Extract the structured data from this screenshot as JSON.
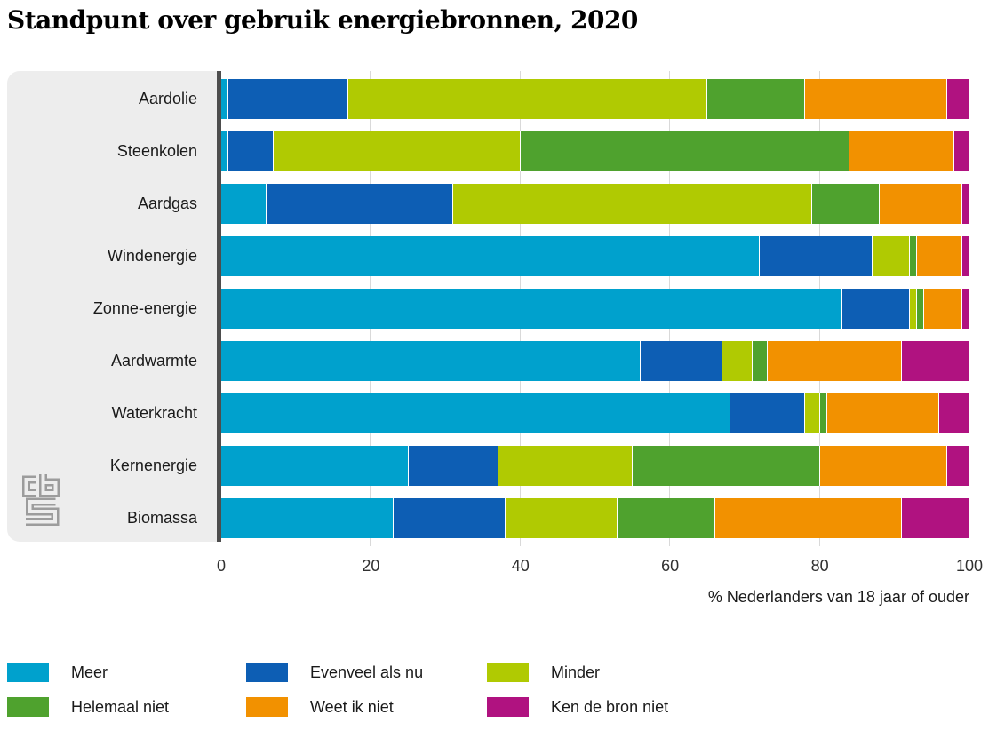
{
  "title": "Standpunt over gebruik energiebronnen, 2020",
  "logo": {
    "name": "cbs-logo"
  },
  "chart_data": {
    "type": "bar",
    "stacked": true,
    "orientation": "horizontal",
    "title": "Standpunt over gebruik energiebronnen, 2020",
    "categories": [
      "Aardolie",
      "Steenkolen",
      "Aardgas",
      "Windenergie",
      "Zonne-energie",
      "Aardwarmte",
      "Waterkracht",
      "Kernenergie",
      "Biomassa"
    ],
    "series": [
      {
        "name": "Meer",
        "color": "#00a1cd",
        "values": [
          1,
          1,
          6,
          72,
          83,
          56,
          68,
          25,
          23
        ]
      },
      {
        "name": "Evenveel als nu",
        "color": "#0d5eb4",
        "values": [
          16,
          6,
          25,
          15,
          9,
          11,
          10,
          12,
          15
        ]
      },
      {
        "name": "Minder",
        "color": "#b0ca02",
        "values": [
          48,
          33,
          48,
          5,
          1,
          4,
          2,
          18,
          15
        ]
      },
      {
        "name": "Helemaal niet",
        "color": "#4fa22e",
        "values": [
          13,
          44,
          9,
          1,
          1,
          2,
          1,
          25,
          13
        ]
      },
      {
        "name": "Weet ik niet",
        "color": "#f29100",
        "values": [
          19,
          14,
          11,
          6,
          5,
          18,
          15,
          17,
          25
        ]
      },
      {
        "name": "Ken de bron niet",
        "color": "#b01280",
        "values": [
          3,
          2,
          1,
          1,
          1,
          9,
          4,
          3,
          9
        ]
      }
    ],
    "xlabel": "% Nederlanders van 18 jaar of ouder",
    "xticks": [
      0,
      20,
      40,
      60,
      80,
      100
    ],
    "xlim": [
      0,
      100
    ],
    "grid": "vertical",
    "legend_position": "bottom",
    "panel_color": "#ededed",
    "axis_line_color": "#4d4d4d",
    "gridline_color": "#d9d9d9"
  }
}
